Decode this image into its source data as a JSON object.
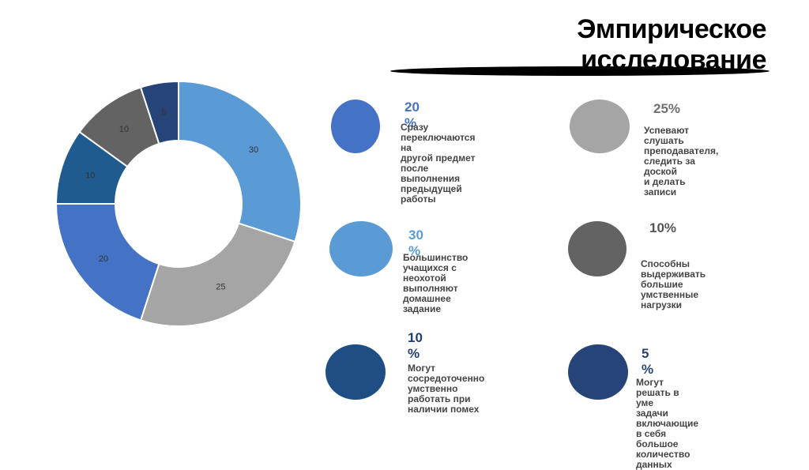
{
  "title": "Эмпирическое исследование",
  "chart_data": {
    "type": "pie",
    "donut": true,
    "categories": [
      "",
      "",
      "",
      "",
      "",
      ""
    ],
    "values": [
      30,
      25,
      20,
      10,
      10,
      5
    ],
    "labels": [
      "30",
      "25",
      "20",
      "10",
      "10",
      "5"
    ],
    "colors": [
      "#5b9bd5",
      "#a5a5a5",
      "#4472c4",
      "#1f5b8e",
      "#636363",
      "#264478"
    ]
  },
  "legend": [
    {
      "pct": "20 %",
      "desc": "Сразу\nпереключаются на\nдругой предмет\nпосле выполнения\nпредыдущей работы",
      "color": "#4472c4",
      "pct_color": "#4472c4"
    },
    {
      "pct": "25%",
      "desc": "Успевают слушать\nпреподавателя,\nследить за доской\nи делать записи",
      "color": "#a5a5a5",
      "pct_color": "#6f6f6f"
    },
    {
      "pct": "30 %",
      "desc": "Большинство\nучащихся с неохотой\nвыполняют домашнее\nзадание",
      "color": "#5b9bd5",
      "pct_color": "#5b9bd5"
    },
    {
      "pct": "10%",
      "desc": "Способны выдерживать\nбольшие умственные\nнагрузки",
      "color": "#636363",
      "pct_color": "#555555"
    },
    {
      "pct": "10 %",
      "desc": "Могут\nсосредоточенно\nумственно\nработать при\nналичии помех",
      "color": "#1f4e85",
      "pct_color": "#1f3f6e"
    },
    {
      "pct": "5 %",
      "desc": "Могут решать в уме\nзадачи включающие\nв себя большое\nколичество данных",
      "color": "#264478",
      "pct_color": "#264478"
    }
  ]
}
